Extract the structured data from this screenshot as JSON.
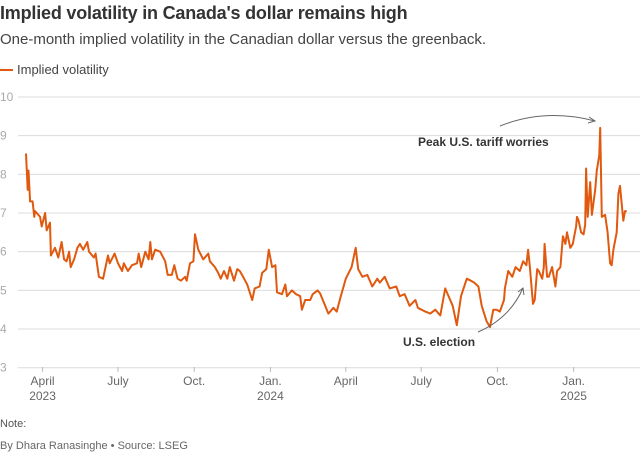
{
  "chart_data": {
    "type": "line",
    "title": "Implied volatility in Canada's dollar remains high",
    "subtitle": "One-month implied volatility in the Canadian dollar versus the greenback.",
    "xlabel": "",
    "ylabel": "",
    "x_unit": "days since 2023-03-12",
    "ylim": [
      3,
      10
    ],
    "yticks": [
      3,
      4,
      5,
      6,
      7,
      8,
      9,
      10
    ],
    "grid": true,
    "legend_placement": "top-left",
    "xticks": [
      {
        "day": 20,
        "label": "April",
        "sub": "2023"
      },
      {
        "day": 111,
        "label": "July",
        "sub": ""
      },
      {
        "day": 203,
        "label": "Oct.",
        "sub": ""
      },
      {
        "day": 295,
        "label": "Jan.",
        "sub": "2024"
      },
      {
        "day": 386,
        "label": "April",
        "sub": ""
      },
      {
        "day": 477,
        "label": "July",
        "sub": ""
      },
      {
        "day": 569,
        "label": "Oct.",
        "sub": ""
      },
      {
        "day": 661,
        "label": "Jan.",
        "sub": "2025"
      }
    ],
    "series": [
      {
        "name": "Implied volatility",
        "color": "#e0590e",
        "points": [
          [
            0,
            8.54
          ],
          [
            2,
            7.6
          ],
          [
            3,
            8.1
          ],
          [
            5,
            7.3
          ],
          [
            8,
            7.3
          ],
          [
            10,
            6.9
          ],
          [
            11,
            7.05
          ],
          [
            17,
            6.9
          ],
          [
            19,
            6.65
          ],
          [
            23,
            7.0
          ],
          [
            25,
            6.55
          ],
          [
            29,
            6.75
          ],
          [
            30,
            5.9
          ],
          [
            35,
            6.1
          ],
          [
            39,
            5.85
          ],
          [
            43,
            6.25
          ],
          [
            46,
            5.8
          ],
          [
            49,
            5.75
          ],
          [
            52,
            6.0
          ],
          [
            54,
            5.6
          ],
          [
            58,
            5.8
          ],
          [
            62,
            6.1
          ],
          [
            65,
            6.2
          ],
          [
            69,
            6.05
          ],
          [
            74,
            6.25
          ],
          [
            76,
            6.0
          ],
          [
            82,
            5.85
          ],
          [
            84,
            5.95
          ],
          [
            88,
            5.35
          ],
          [
            93,
            5.3
          ],
          [
            95,
            5.5
          ],
          [
            99,
            5.9
          ],
          [
            101,
            5.7
          ],
          [
            107,
            5.95
          ],
          [
            111,
            5.7
          ],
          [
            116,
            5.5
          ],
          [
            118,
            5.7
          ],
          [
            123,
            5.5
          ],
          [
            128,
            5.65
          ],
          [
            134,
            5.7
          ],
          [
            136,
            5.95
          ],
          [
            139,
            5.6
          ],
          [
            144,
            6.0
          ],
          [
            148,
            5.8
          ],
          [
            150,
            6.25
          ],
          [
            152,
            5.8
          ],
          [
            156,
            6.05
          ],
          [
            162,
            6.0
          ],
          [
            168,
            5.75
          ],
          [
            171,
            5.4
          ],
          [
            176,
            5.4
          ],
          [
            179,
            5.65
          ],
          [
            183,
            5.3
          ],
          [
            187,
            5.25
          ],
          [
            192,
            5.35
          ],
          [
            194,
            5.25
          ],
          [
            198,
            5.7
          ],
          [
            202,
            5.75
          ],
          [
            204,
            6.45
          ],
          [
            208,
            6.05
          ],
          [
            214,
            5.8
          ],
          [
            220,
            5.95
          ],
          [
            222,
            5.75
          ],
          [
            228,
            5.6
          ],
          [
            232,
            5.45
          ],
          [
            235,
            5.3
          ],
          [
            239,
            5.5
          ],
          [
            243,
            5.3
          ],
          [
            246,
            5.6
          ],
          [
            251,
            5.25
          ],
          [
            255,
            5.55
          ],
          [
            258,
            5.5
          ],
          [
            262,
            5.35
          ],
          [
            267,
            5.15
          ],
          [
            273,
            4.75
          ],
          [
            276,
            5.05
          ],
          [
            282,
            5.1
          ],
          [
            285,
            5.45
          ],
          [
            290,
            5.55
          ],
          [
            293,
            6.05
          ],
          [
            297,
            5.6
          ],
          [
            301,
            5.65
          ],
          [
            303,
            4.95
          ],
          [
            309,
            4.9
          ],
          [
            313,
            5.15
          ],
          [
            315,
            4.85
          ],
          [
            321,
            5.0
          ],
          [
            326,
            4.9
          ],
          [
            331,
            4.85
          ],
          [
            333,
            4.5
          ],
          [
            337,
            4.75
          ],
          [
            343,
            4.75
          ],
          [
            346,
            4.9
          ],
          [
            352,
            5.0
          ],
          [
            355,
            4.92
          ],
          [
            365,
            4.4
          ],
          [
            371,
            4.55
          ],
          [
            375,
            4.45
          ],
          [
            380,
            4.85
          ],
          [
            386,
            5.3
          ],
          [
            393,
            5.6
          ],
          [
            398,
            6.1
          ],
          [
            401,
            5.55
          ],
          [
            406,
            5.35
          ],
          [
            412,
            5.4
          ],
          [
            418,
            5.1
          ],
          [
            424,
            5.3
          ],
          [
            427,
            5.2
          ],
          [
            433,
            5.35
          ],
          [
            439,
            5.05
          ],
          [
            447,
            5.1
          ],
          [
            451,
            4.85
          ],
          [
            457,
            4.9
          ],
          [
            463,
            4.6
          ],
          [
            470,
            4.75
          ],
          [
            473,
            4.55
          ],
          [
            482,
            4.45
          ],
          [
            488,
            4.4
          ],
          [
            494,
            4.5
          ],
          [
            500,
            4.35
          ],
          [
            506,
            5.05
          ],
          [
            511,
            4.8
          ],
          [
            515,
            4.6
          ],
          [
            520,
            4.1
          ],
          [
            525,
            4.85
          ],
          [
            532,
            5.3
          ],
          [
            537,
            5.25
          ],
          [
            541,
            5.2
          ],
          [
            546,
            5.1
          ],
          [
            550,
            4.6
          ],
          [
            556,
            4.2
          ],
          [
            560,
            4.05
          ],
          [
            564,
            4.5
          ],
          [
            568,
            4.5
          ],
          [
            572,
            4.45
          ],
          [
            577,
            4.75
          ],
          [
            578,
            5.05
          ],
          [
            582,
            5.5
          ],
          [
            587,
            5.35
          ],
          [
            591,
            5.6
          ],
          [
            596,
            5.5
          ],
          [
            600,
            5.75
          ],
          [
            604,
            5.65
          ],
          [
            606,
            6.05
          ],
          [
            608,
            5.65
          ],
          [
            612,
            4.65
          ],
          [
            614,
            4.75
          ],
          [
            617,
            5.55
          ],
          [
            619,
            5.5
          ],
          [
            623,
            5.3
          ],
          [
            625,
            5.6
          ],
          [
            626,
            6.2
          ],
          [
            629,
            5.35
          ],
          [
            631,
            5.35
          ],
          [
            635,
            5.6
          ],
          [
            639,
            5.1
          ],
          [
            641,
            5.5
          ],
          [
            645,
            5.6
          ],
          [
            648,
            6.4
          ],
          [
            651,
            6.2
          ],
          [
            653,
            6.5
          ],
          [
            657,
            6.1
          ],
          [
            660,
            6.2
          ],
          [
            664,
            6.65
          ],
          [
            665,
            6.9
          ],
          [
            667,
            6.8
          ],
          [
            670,
            6.5
          ],
          [
            673,
            6.45
          ],
          [
            675,
            6.7
          ],
          [
            676,
            8.15
          ],
          [
            678,
            6.9
          ],
          [
            681,
            7.8
          ],
          [
            683,
            6.95
          ],
          [
            687,
            7.6
          ],
          [
            689,
            8.1
          ],
          [
            692,
            8.5
          ],
          [
            693,
            9.2
          ],
          [
            695,
            6.9
          ],
          [
            699,
            6.95
          ],
          [
            702,
            6.5
          ],
          [
            705,
            5.7
          ],
          [
            707,
            5.65
          ],
          [
            709,
            6.05
          ],
          [
            713,
            6.5
          ],
          [
            715,
            7.5
          ],
          [
            717,
            7.7
          ],
          [
            721,
            6.8
          ],
          [
            723,
            7.05
          ],
          [
            725,
            7.05
          ]
        ]
      }
    ],
    "annotations": [
      {
        "text": "Peak U.S. tariff worries",
        "day": 693,
        "value": 9.2
      },
      {
        "text": "U.S. election",
        "day": 606,
        "value": 5.2
      }
    ],
    "note": "Note:",
    "byline": "By Dhara Ranasinghe • Source: LSEG"
  }
}
